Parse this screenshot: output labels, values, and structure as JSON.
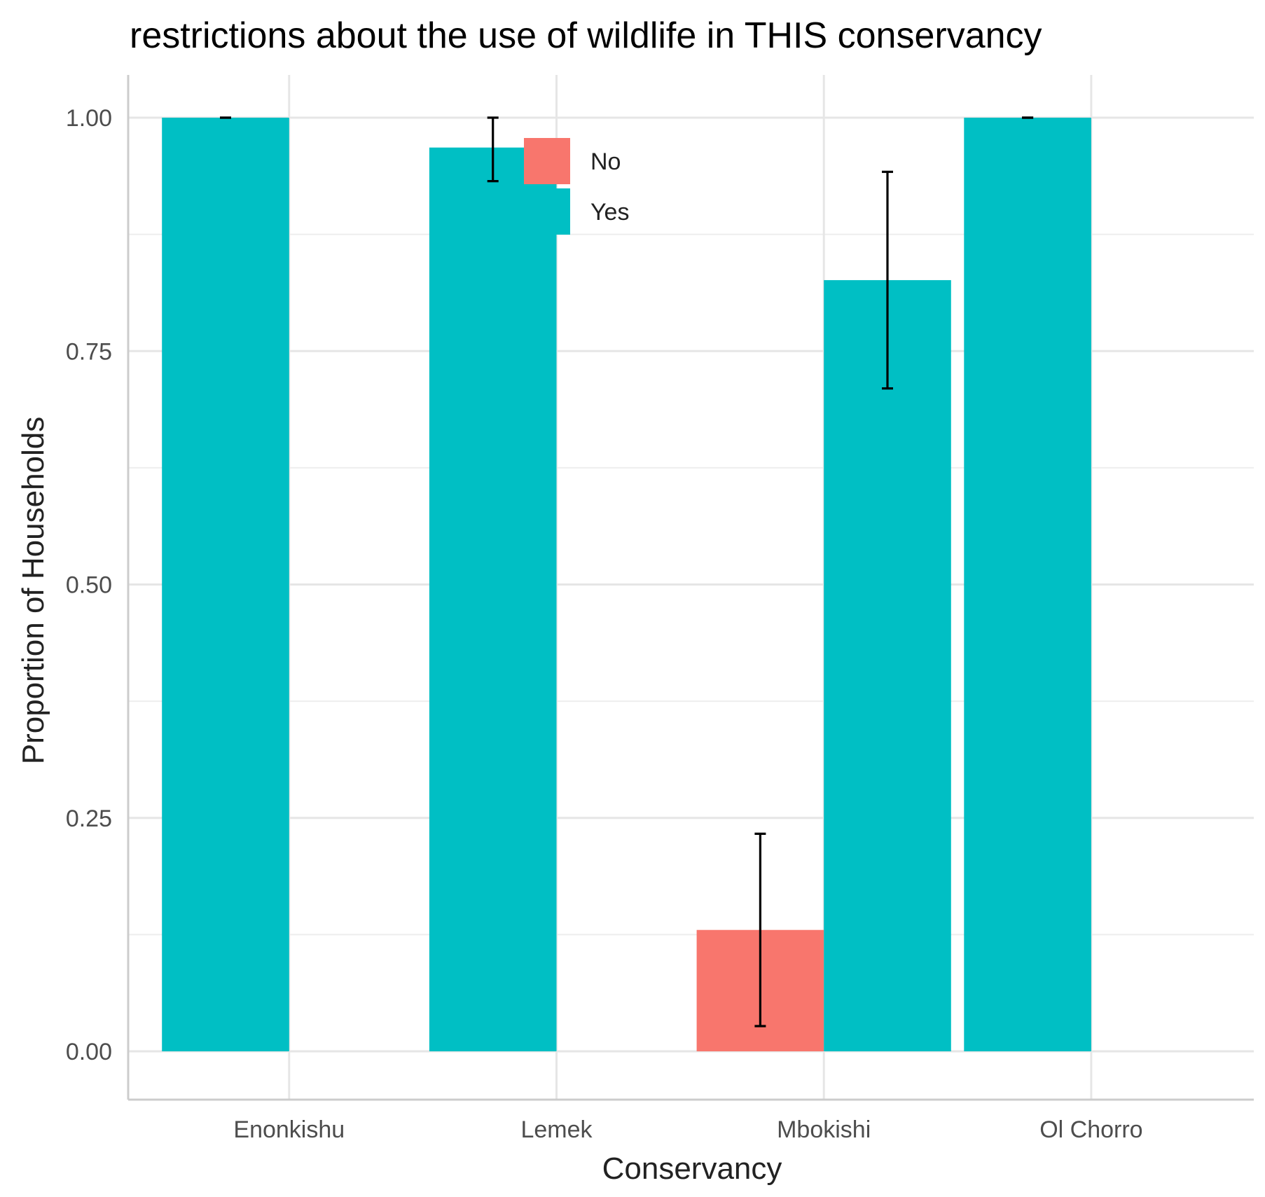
{
  "chart_data": {
    "type": "bar",
    "title": "restrictions about the use of wildlife in THIS conservancy",
    "xlabel": "Conservancy",
    "ylabel": "Proportion of Households",
    "categories": [
      "Enonkishu",
      "Lemek",
      "Mbokishi",
      "Ol Chorro"
    ],
    "ylim": [
      -0.05,
      1.05
    ],
    "yticks": [
      0.0,
      0.25,
      0.5,
      0.75,
      1.0
    ],
    "ytick_labels": [
      "0.00",
      "0.25",
      "0.50",
      "0.75",
      "1.00"
    ],
    "grid": true,
    "legend_position": "top-center",
    "series": [
      {
        "name": "No",
        "color": "#F8766D",
        "values": [
          null,
          null,
          0.13,
          null
        ],
        "error_low": [
          null,
          null,
          0.027,
          null
        ],
        "error_high": [
          null,
          null,
          0.233,
          null
        ]
      },
      {
        "name": "Yes",
        "color": "#00BFC4",
        "values": [
          1.0,
          0.968,
          0.826,
          1.0
        ],
        "error_low": [
          1.0,
          0.932,
          0.71,
          1.0
        ],
        "error_high": [
          1.0,
          1.0,
          0.942,
          1.0
        ]
      }
    ]
  }
}
